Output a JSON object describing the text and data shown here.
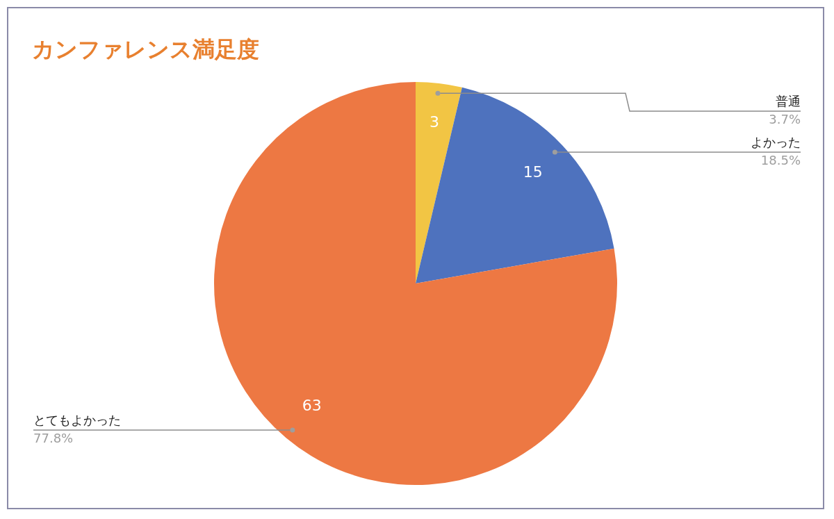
{
  "chart_data": {
    "type": "pie",
    "title": "カンファレンス満足度",
    "categories": [
      "普通",
      "よかった",
      "とてもよかった"
    ],
    "values": [
      3,
      15,
      63
    ],
    "colors": [
      "#f2c544",
      "#4e72be",
      "#ed7843"
    ],
    "annotations": [
      "3.7%",
      "18.5%",
      "77.8%"
    ],
    "data_labels": true,
    "legend": false
  }
}
